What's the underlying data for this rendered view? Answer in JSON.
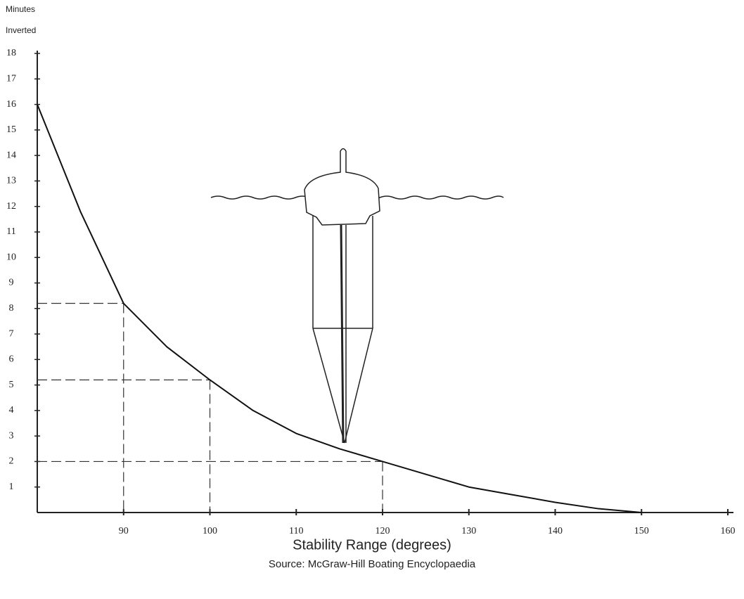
{
  "chart_data": {
    "type": "line",
    "y_label": [
      "Minutes",
      "Inverted"
    ],
    "x_label": "Stability Range (degrees)",
    "source": "Source: McGraw-Hill Boating Encyclopaedia",
    "x": [
      80,
      85,
      90,
      95,
      100,
      105,
      110,
      115,
      120,
      125,
      130,
      135,
      140,
      145,
      150
    ],
    "series": [
      {
        "color": "#111111",
        "values": [
          16,
          11.8,
          8.2,
          6.5,
          5.2,
          4.0,
          3.1,
          2.5,
          2.0,
          1.5,
          1.0,
          0.7,
          0.4,
          0.15,
          0
        ]
      }
    ],
    "reference_points": {
      "x": [
        90,
        100,
        120
      ],
      "y": [
        8.2,
        5.2,
        2
      ]
    },
    "xlim": [
      80,
      160
    ],
    "xticks": [
      90,
      100,
      110,
      120,
      130,
      140,
      150,
      160
    ],
    "ylim": [
      0,
      18
    ],
    "yticks": [
      1,
      2,
      3,
      4,
      5,
      6,
      7,
      8,
      9,
      10,
      11,
      12,
      13,
      14,
      15,
      16,
      17,
      18
    ]
  }
}
